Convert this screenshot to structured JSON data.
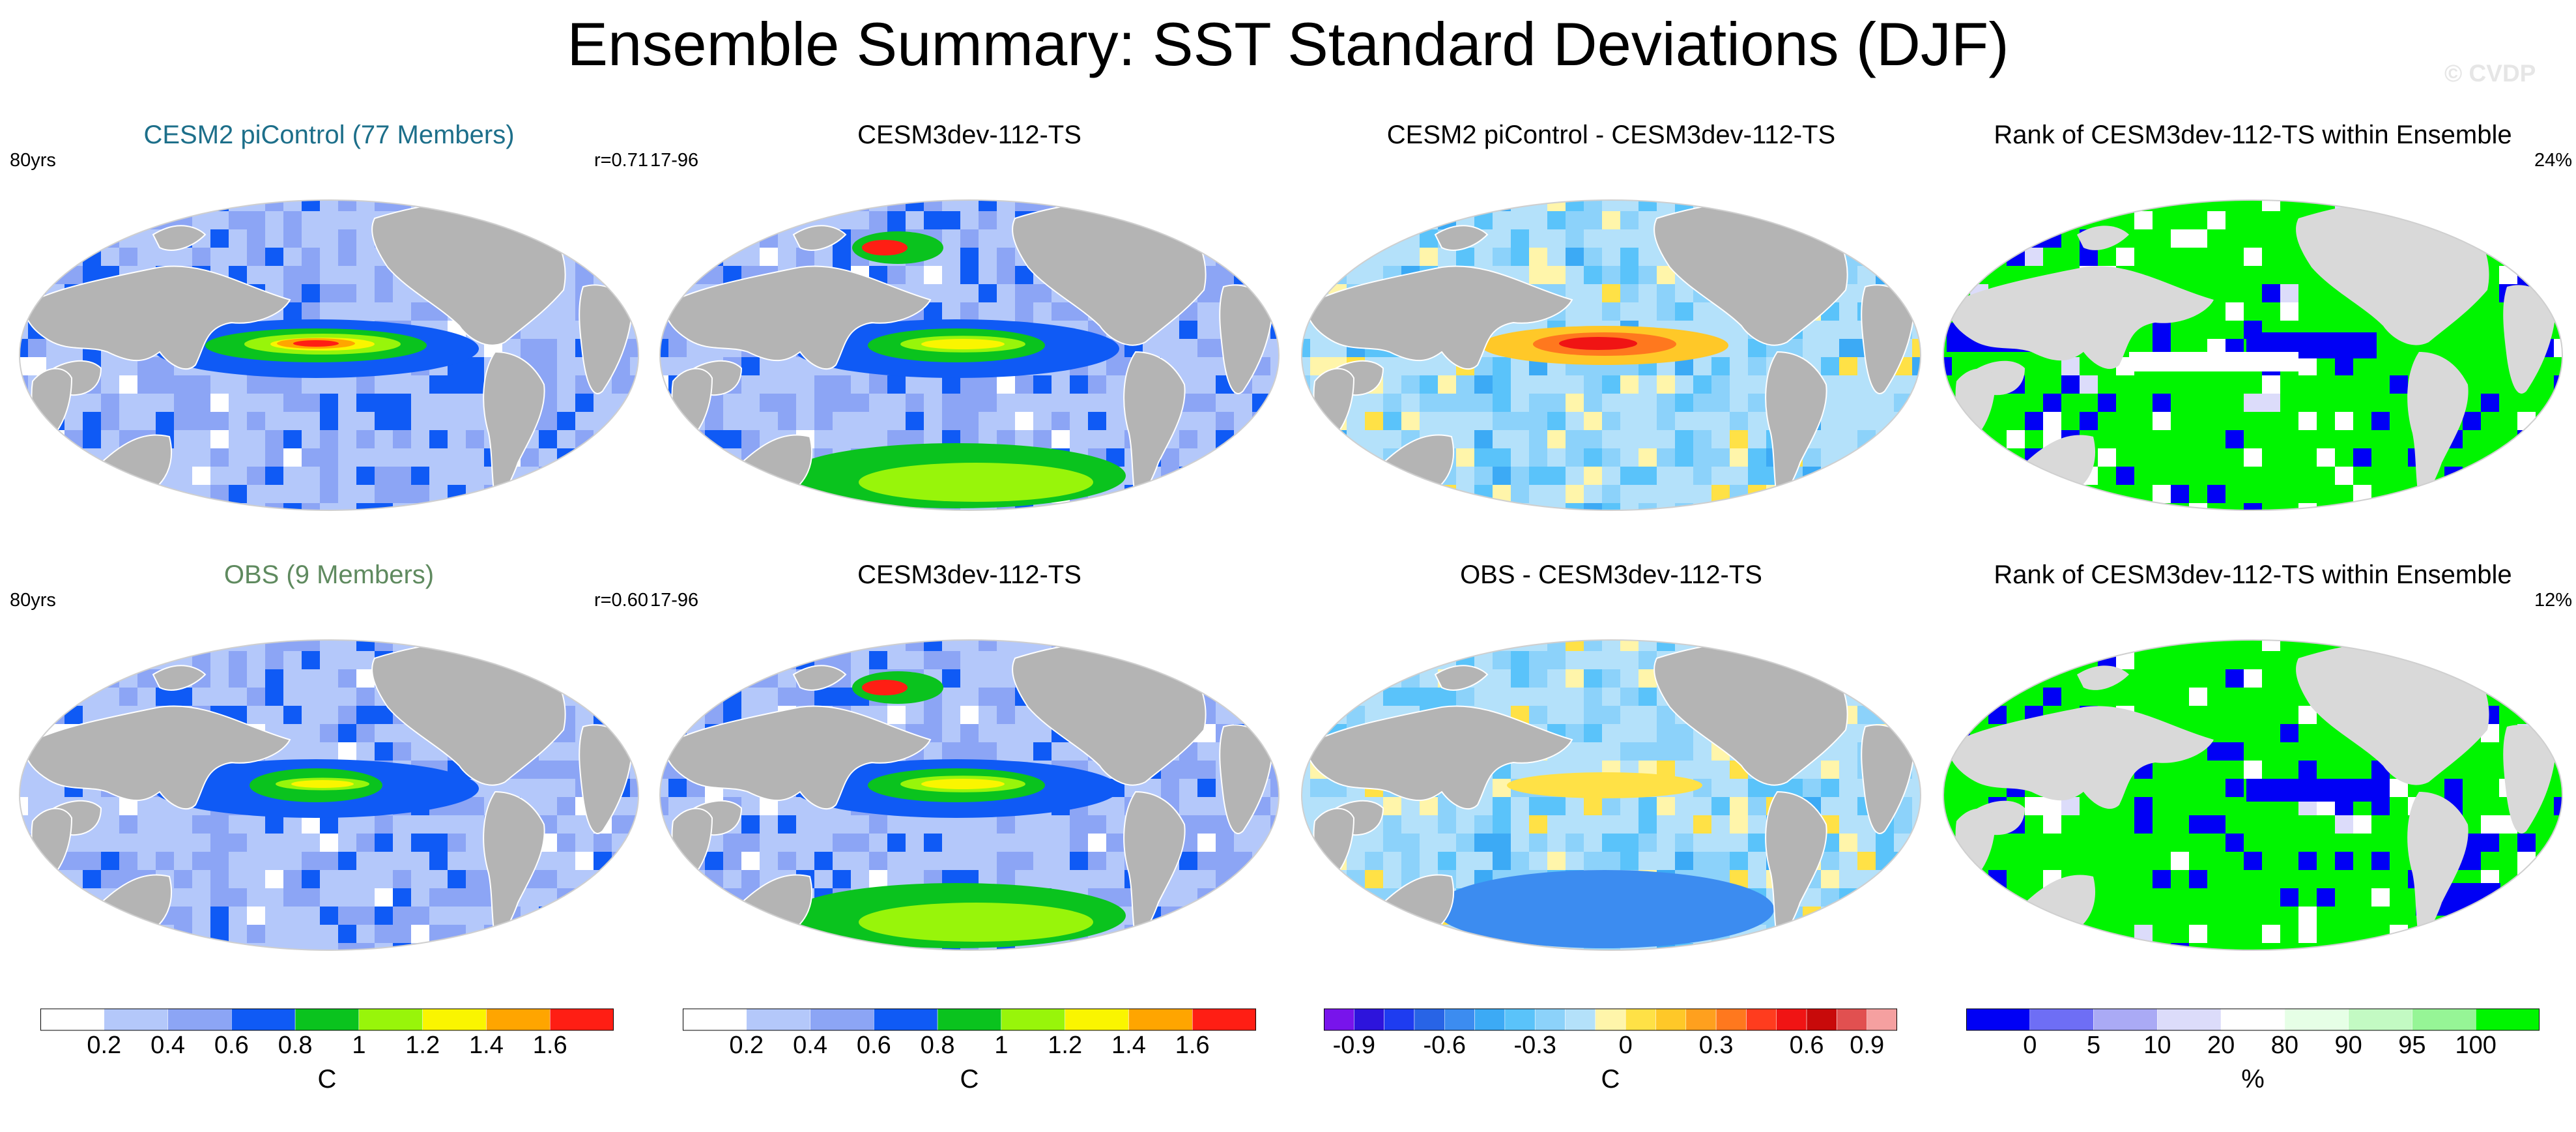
{
  "title": "Ensemble Summary: SST Standard Deviations (DJF)",
  "watermark": "© CVDP",
  "panels": [
    {
      "title": "CESM2 piControl (77 Members)",
      "title_color": "#1d6f8a",
      "left": "80yrs",
      "right": "r=0.71",
      "kind": "sd",
      "hotspot": 1.0
    },
    {
      "title": "CESM3dev-112-TS",
      "title_color": "#000000",
      "left": "17-96",
      "right": "",
      "kind": "sd",
      "hotspot": 0.8
    },
    {
      "title": "CESM2 piControl - CESM3dev-112-TS",
      "title_color": "#000000",
      "left": "",
      "right": "",
      "kind": "diff",
      "hotspot": 1.0
    },
    {
      "title": "Rank of CESM3dev-112-TS within Ensemble",
      "title_color": "#000000",
      "left": "",
      "right": "24%",
      "kind": "rank",
      "hotspot": 1.0
    },
    {
      "title": "OBS (9 Members)",
      "title_color": "#5f8a5f",
      "left": "80yrs",
      "right": "r=0.60",
      "kind": "sd",
      "hotspot": 0.6
    },
    {
      "title": "CESM3dev-112-TS",
      "title_color": "#000000",
      "left": "17-96",
      "right": "",
      "kind": "sd",
      "hotspot": 0.8
    },
    {
      "title": "OBS - CESM3dev-112-TS",
      "title_color": "#000000",
      "left": "",
      "right": "",
      "kind": "diff",
      "hotspot": 0.3
    },
    {
      "title": "Rank of CESM3dev-112-TS within Ensemble",
      "title_color": "#000000",
      "left": "",
      "right": "12%",
      "kind": "rank",
      "hotspot": 0.0
    }
  ],
  "colorbars": [
    {
      "unit": "C",
      "colors": [
        "#ffffff",
        "#b4c8fa",
        "#8ca5f5",
        "#0f5af5",
        "#0ac31e",
        "#98f50a",
        "#faf500",
        "#ffa500",
        "#ff1e14"
      ],
      "labels": [
        "0.2",
        "0.4",
        "0.6",
        "0.8",
        "1",
        "1.2",
        "1.4",
        "1.6"
      ]
    },
    {
      "unit": "C",
      "colors": [
        "#ffffff",
        "#b4c8fa",
        "#8ca5f5",
        "#0f5af5",
        "#0ac31e",
        "#98f50a",
        "#faf500",
        "#ffa500",
        "#ff1e14"
      ],
      "labels": [
        "0.2",
        "0.4",
        "0.6",
        "0.8",
        "1",
        "1.2",
        "1.4",
        "1.6"
      ]
    },
    {
      "unit": "C",
      "colors": [
        "#7814eb",
        "#2d14dc",
        "#1e3cf0",
        "#2864e6",
        "#3c8cf0",
        "#3caaf5",
        "#5ac3fa",
        "#8cd2fa",
        "#b4e1fa",
        "#fff5aa",
        "#ffe146",
        "#ffc828",
        "#ffa01e",
        "#ff781e",
        "#ff3c1e",
        "#f01414",
        "#c80a0a",
        "#e15050",
        "#f5a0a0"
      ],
      "labels": [
        "-0.9",
        "-0.6",
        "-0.3",
        "0",
        "0.3",
        "0.6",
        "0.9"
      ]
    },
    {
      "unit": "%",
      "colors": [
        "#0000f5",
        "#6e6ef5",
        "#aaaaf5",
        "#dcdcfa",
        "#ffffff",
        "#e6ffe6",
        "#c3fac3",
        "#96f596",
        "#00f500"
      ],
      "labels": [
        "0",
        "5",
        "10",
        "20",
        "80",
        "90",
        "95",
        "100"
      ]
    }
  ]
}
